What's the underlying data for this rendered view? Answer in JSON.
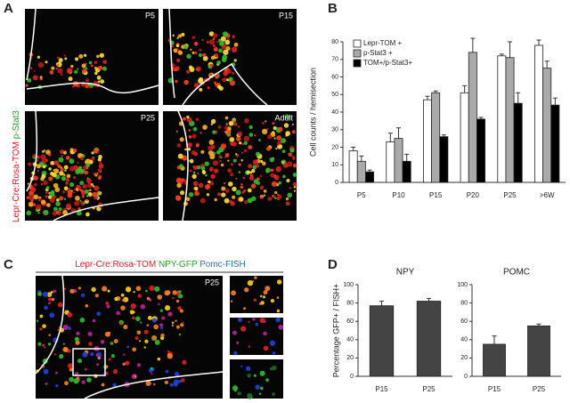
{
  "panels": {
    "a": {
      "letter": "A",
      "side_label": [
        "Lepr-Cre:Rosa-TOM",
        "p-Stat3"
      ],
      "images": [
        "P5",
        "P15",
        "P25",
        "Adult"
      ]
    },
    "b": {
      "letter": "B"
    },
    "c": {
      "letter": "C",
      "title": [
        "Lepr-Cre:Rosa-TOM",
        "NPY-GFP",
        "Pomc-FISH"
      ],
      "image_label": "P25"
    },
    "d": {
      "letter": "D"
    }
  },
  "chart_data": [
    {
      "type": "bar",
      "y_label": "Cell counts / hemisection",
      "categories": [
        "P5",
        "P10",
        "P15",
        "P20",
        "P25",
        ">6W"
      ],
      "series": [
        {
          "name": "Lepr-TOM +",
          "color": "#ffffff",
          "values": [
            18,
            23,
            47,
            51,
            72,
            78
          ],
          "errors": [
            2,
            5,
            2,
            4,
            1,
            3
          ]
        },
        {
          "name": "p-Stat3 +",
          "color": "#aaaaaa",
          "values": [
            12,
            25,
            51,
            74,
            71,
            65
          ],
          "errors": [
            3,
            6,
            1,
            8,
            9,
            4
          ]
        },
        {
          "name": "TOM+/p-Stat3+",
          "color": "#000000",
          "values": [
            6,
            12,
            26,
            36,
            45,
            44
          ],
          "errors": [
            1,
            4,
            1,
            1,
            6,
            4
          ]
        }
      ],
      "ylim": [
        0,
        80
      ],
      "yticks": [
        0,
        10,
        20,
        30,
        40,
        50,
        60,
        70,
        80
      ],
      "legend": "top-left"
    },
    {
      "type": "bar",
      "title": "NPY",
      "y_label": "Percentage GFP+ / FISH+",
      "categories": [
        "P15",
        "P25"
      ],
      "values": [
        77,
        82
      ],
      "errors": [
        5,
        3
      ],
      "color": "#444444",
      "ylim": [
        0,
        100
      ],
      "yticks": [
        0,
        20,
        40,
        60,
        80,
        100
      ]
    },
    {
      "type": "bar",
      "title": "POMC",
      "categories": [
        "P15",
        "P25"
      ],
      "values": [
        35,
        55
      ],
      "errors": [
        9,
        2
      ],
      "color": "#444444",
      "ylim": [
        0,
        100
      ],
      "yticks": [
        0,
        20,
        40,
        60,
        80,
        100
      ]
    }
  ]
}
